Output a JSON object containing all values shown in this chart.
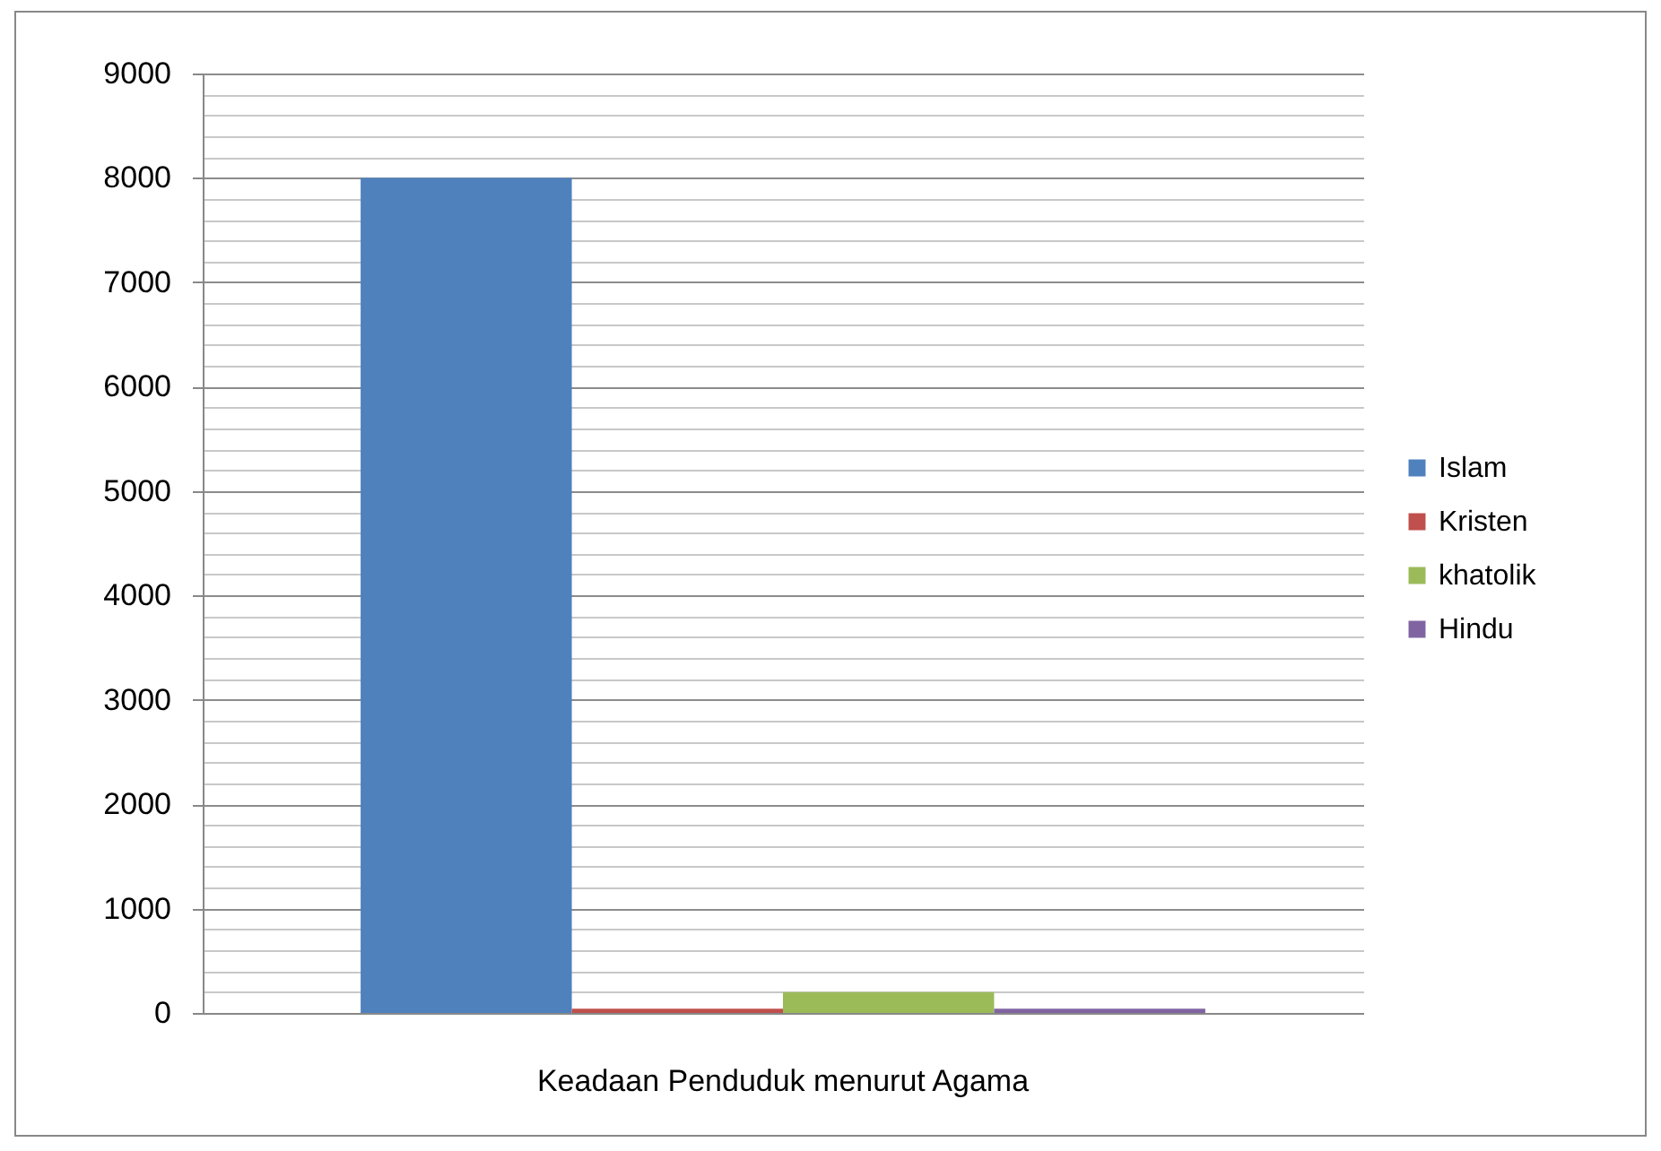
{
  "chart_data": {
    "type": "bar",
    "categories": [
      "Keadaan Penduduk menurut Agama"
    ],
    "series": [
      {
        "name": "Islam",
        "color": "#4f81bd",
        "values": [
          8000
        ]
      },
      {
        "name": "Kristen",
        "color": "#c0504d",
        "values": [
          40
        ]
      },
      {
        "name": "khatolik",
        "color": "#9bbb59",
        "values": [
          200
        ]
      },
      {
        "name": "Hindu",
        "color": "#8064a2",
        "values": [
          40
        ]
      }
    ],
    "ylim": [
      0,
      9000
    ],
    "yticks": [
      0,
      {
        "value": 200,
        "label": null
      },
      {
        "value": 400,
        "label": null
      },
      {
        "value": 600,
        "label": null
      },
      {
        "value": 800,
        "label": null
      },
      1000,
      {
        "value": 1200,
        "label": null
      },
      {
        "value": 1400,
        "label": null
      },
      {
        "value": 1600,
        "label": null
      },
      {
        "value": 1800,
        "label": null
      },
      2000,
      {
        "value": 2200,
        "label": null
      },
      {
        "value": 2400,
        "label": null
      },
      {
        "value": 2600,
        "label": null
      },
      {
        "value": 2800,
        "label": null
      },
      3000,
      {
        "value": 3200,
        "label": null
      },
      {
        "value": 3400,
        "label": null
      },
      {
        "value": 3600,
        "label": null
      },
      {
        "value": 3800,
        "label": null
      },
      4000,
      {
        "value": 4200,
        "label": null
      },
      {
        "value": 4400,
        "label": null
      },
      {
        "value": 4600,
        "label": null
      },
      {
        "value": 4800,
        "label": null
      },
      5000,
      {
        "value": 5200,
        "label": null
      },
      {
        "value": 5400,
        "label": null
      },
      {
        "value": 5600,
        "label": null
      },
      {
        "value": 5800,
        "label": null
      },
      6000,
      {
        "value": 6200,
        "label": null
      },
      {
        "value": 6400,
        "label": null
      },
      {
        "value": 6600,
        "label": null
      },
      {
        "value": 6800,
        "label": null
      },
      7000,
      {
        "value": 7200,
        "label": null
      },
      {
        "value": 7400,
        "label": null
      },
      {
        "value": 7600,
        "label": null
      },
      {
        "value": 7800,
        "label": null
      },
      8000,
      {
        "value": 8200,
        "label": null
      },
      {
        "value": 8400,
        "label": null
      },
      {
        "value": 8600,
        "label": null
      },
      {
        "value": 8800,
        "label": null
      },
      9000
    ],
    "grid": "y",
    "legend": "right"
  }
}
